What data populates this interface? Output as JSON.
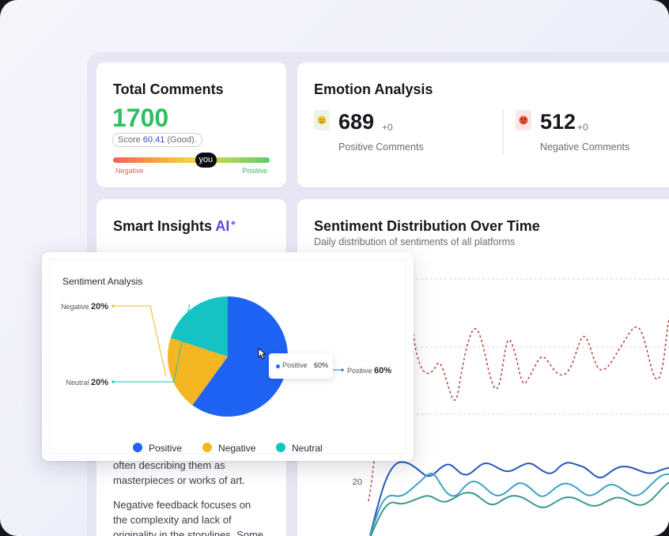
{
  "colors": {
    "positive": "#1f63f5",
    "negative": "#f5b623",
    "neutral": "#16c3c4",
    "green": "#2fbf5f"
  },
  "total": {
    "title": "Total Comments",
    "count": "1700",
    "score_prefix": "Score ",
    "score_value": "60.41",
    "score_suffix": " (Good).",
    "marker": "you",
    "marker_position": 0.59,
    "low_label": "Negative",
    "high_label": "Positive"
  },
  "emotion": {
    "title": "Emotion Analysis",
    "positive": {
      "icon": "smiling-face-icon",
      "count": "689",
      "delta": "+0",
      "label": "Positive Comments"
    },
    "negative": {
      "icon": "angry-face-icon",
      "count": "512",
      "delta": "+0",
      "label": "Negative Comments"
    }
  },
  "insights": {
    "title": "Smart Insights",
    "ai": "AI",
    "paragraph1_line1": "often describing them as",
    "paragraph1_line2": "masterpieces or works of art.",
    "paragraph2_line1": "Negative feedback focuses on",
    "paragraph2_line2": "the complexity and lack of",
    "paragraph2_line3": "originality in the storylines. Some"
  },
  "distribution": {
    "title": "Sentiment Distribution Over Time",
    "subtitle": "Daily distribution of sentiments of all platforms",
    "y_tick_visible": "20"
  },
  "popup": {
    "title": "Sentiment Analysis",
    "tooltip_name": "Positive",
    "tooltip_value": "60%",
    "legend": [
      "Positive",
      "Negative",
      "Neutral"
    ]
  },
  "chart_data": {
    "type": "pie",
    "title": "Sentiment Analysis",
    "categories": [
      "Positive",
      "Negative",
      "Neutral"
    ],
    "values": [
      60,
      20,
      20
    ],
    "unit": "%",
    "legend_position": "bottom"
  }
}
